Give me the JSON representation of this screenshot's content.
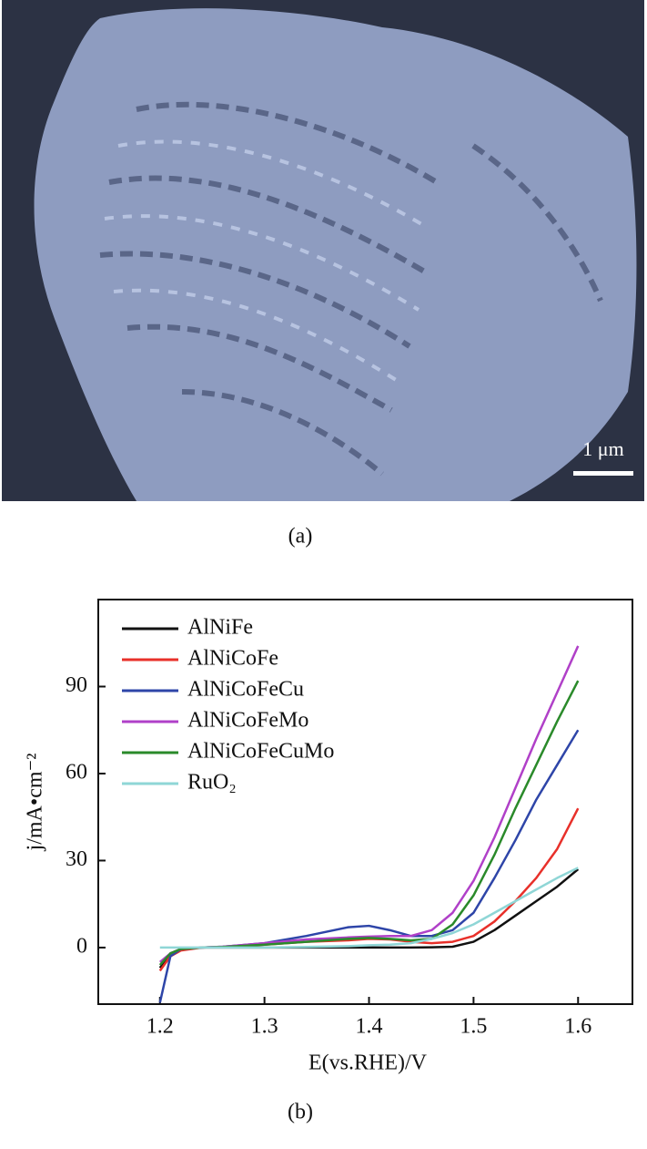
{
  "image": {
    "scale_bar": "1 μm",
    "caption": "(a)"
  },
  "chart_data": {
    "type": "line",
    "caption": "(b)",
    "x_label": "E(vs.RHE)/V",
    "y_label": "j/mA•cm⁻²",
    "x": [
      1.2,
      1.21,
      1.22,
      1.24,
      1.26,
      1.3,
      1.34,
      1.38,
      1.4,
      1.42,
      1.44,
      1.46,
      1.48,
      1.5,
      1.52,
      1.54,
      1.56,
      1.58,
      1.6
    ],
    "series": [
      {
        "name": "AlNiFe",
        "color": "#111111",
        "values": [
          -7,
          -2,
          -0.5,
          0,
          0,
          0,
          0,
          0,
          0,
          0,
          0,
          0.1,
          0.3,
          2,
          6,
          11,
          16,
          21,
          27
        ]
      },
      {
        "name": "AlNiCoFe",
        "color": "#e8302a",
        "values": [
          -8,
          -3,
          -1,
          0,
          0.2,
          1,
          2,
          2.5,
          3,
          2.8,
          2,
          1.5,
          2,
          4,
          9,
          16,
          24,
          34,
          48
        ]
      },
      {
        "name": "AlNiCoFeCu",
        "color": "#2e45a8",
        "values": [
          -19,
          -3,
          -0.5,
          0,
          0.3,
          1.5,
          4,
          7,
          7.5,
          6,
          4,
          4,
          6,
          12,
          24,
          37,
          51,
          63,
          75
        ]
      },
      {
        "name": "AlNiCoFeMo",
        "color": "#b040c8",
        "values": [
          -5,
          -2,
          -0.5,
          0,
          0.3,
          1.5,
          2.8,
          3.5,
          3.8,
          4,
          4,
          6,
          12,
          23,
          38,
          55,
          72,
          88,
          104
        ]
      },
      {
        "name": "AlNiCoFeCuMo",
        "color": "#2a8a2a",
        "values": [
          -6,
          -2,
          -0.5,
          0,
          0.2,
          1,
          2,
          3,
          3.3,
          3,
          2.5,
          3,
          8,
          18,
          32,
          48,
          63,
          78,
          92
        ]
      },
      {
        "name": "RuO₂",
        "color": "#8fd6d6",
        "values": [
          0,
          0,
          0,
          0,
          0,
          0,
          0.2,
          0.5,
          0.8,
          1,
          1.5,
          3,
          5,
          8,
          12,
          16,
          20,
          24,
          27.5
        ]
      }
    ],
    "xlim": [
      1.141,
      1.652
    ],
    "ylim": [
      -19.5,
      120
    ],
    "xticks": [
      1.2,
      1.3,
      1.4,
      1.5,
      1.6
    ],
    "yticks": [
      0,
      30,
      60,
      90
    ],
    "legend": "upper-left"
  }
}
